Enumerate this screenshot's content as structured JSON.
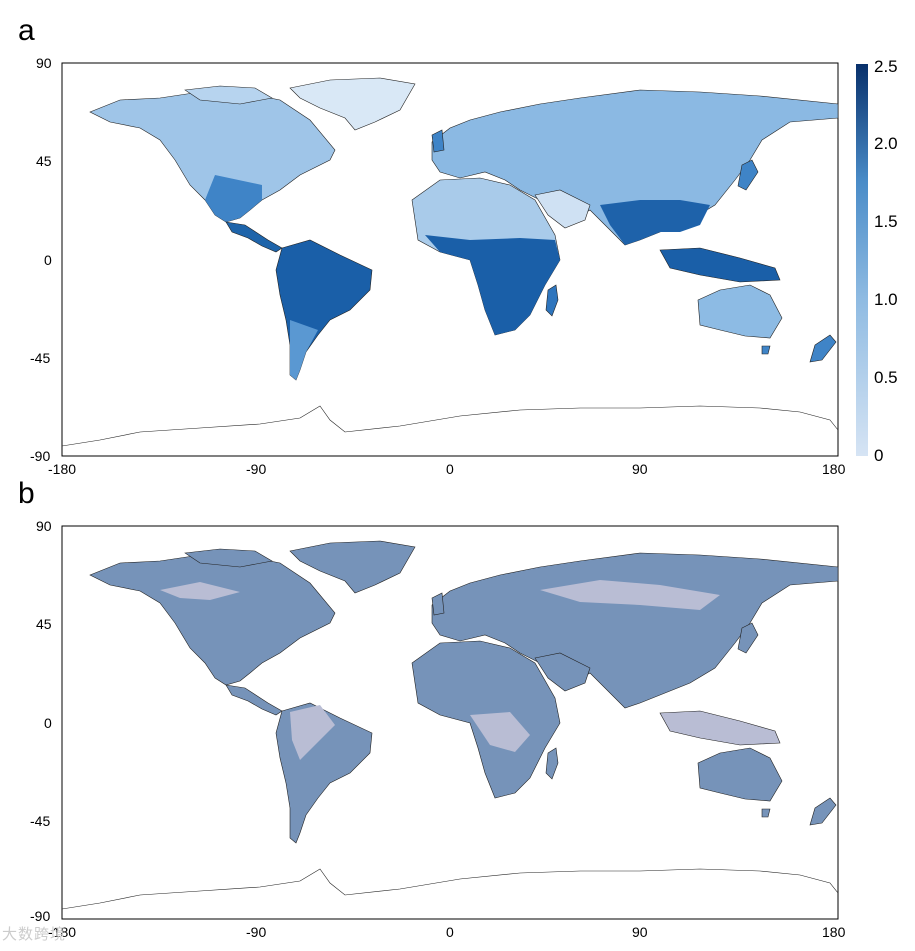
{
  "panels": [
    {
      "letter": "a",
      "x_ticks": [
        "-180",
        "-90",
        "0",
        "90",
        "180"
      ],
      "y_ticks": [
        "90",
        "45",
        "0",
        "-45",
        "-90"
      ],
      "colorbar": {
        "ticks": [
          "2.5",
          "2.0",
          "1.5",
          "1.0",
          "0.5",
          "0"
        ],
        "range": [
          0,
          2.5
        ],
        "color_low": "#d6e4f4",
        "color_high": "#08306b"
      }
    },
    {
      "letter": "b",
      "x_ticks": [
        "-180",
        "-90",
        "0",
        "90",
        "180"
      ],
      "y_ticks": [
        "90",
        "45",
        "0",
        "-45",
        "-90"
      ],
      "colors": {
        "land_main": "#7693b9",
        "land_alt": "#b9bdd4"
      }
    }
  ],
  "watermark": "大数跨境",
  "chart_data": [
    {
      "type": "heatmap",
      "kind": "map",
      "panel": "a",
      "xlim": [
        -180,
        180
      ],
      "ylim": [
        -90,
        90
      ],
      "colorbar_ticks": [
        0,
        0.5,
        1.0,
        1.5,
        2.0,
        2.5
      ]
    },
    {
      "type": "heatmap",
      "kind": "map",
      "panel": "b",
      "xlim": [
        -180,
        180
      ],
      "ylim": [
        -90,
        90
      ]
    }
  ]
}
